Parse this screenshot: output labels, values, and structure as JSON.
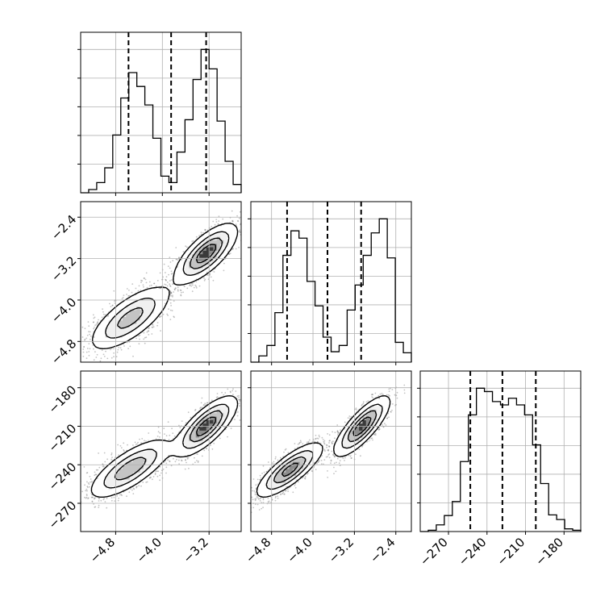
{
  "chart_data": {
    "type": "corner",
    "grid": true,
    "colors": {
      "ink": "#000000",
      "grid": "#b0b0b0",
      "scatter": "#7a7a7a",
      "background": "#ffffff"
    },
    "axes": {
      "p0": {
        "range": [
          -5.4,
          -2.65
        ],
        "ticks": [
          -4.8,
          -4.0,
          -3.2
        ],
        "tick_labels": [
          "−4.8",
          "−4.0",
          "−3.2"
        ]
      },
      "p1": {
        "range": [
          -5.2,
          -2.1
        ],
        "ticks": [
          -4.8,
          -4.0,
          -3.2,
          -2.4
        ],
        "tick_labels": [
          "−4.8",
          "−4.0",
          "−3.2",
          "−2.4"
        ]
      },
      "p2": {
        "range": [
          -292,
          -167
        ],
        "ticks": [
          -270,
          -240,
          -210,
          -180
        ],
        "tick_labels": [
          "−270",
          "−240",
          "−210",
          "−180"
        ]
      }
    },
    "histograms": [
      {
        "param": "p0",
        "bin_edges": [
          -5.4,
          -5.2625,
          -5.125,
          -4.9875,
          -4.85,
          -4.7125,
          -4.575,
          -4.4375,
          -4.3,
          -4.1625,
          -4.025,
          -3.8875,
          -3.75,
          -3.6125,
          -3.475,
          -3.3375,
          -3.2,
          -3.0625,
          -2.925,
          -2.7875,
          -2.65
        ],
        "counts": [
          0,
          7,
          22,
          54,
          125,
          205,
          260,
          230,
          190,
          118,
          36,
          22,
          88,
          158,
          245,
          310,
          268,
          155,
          68,
          18,
          0
        ],
        "quantiles": [
          -4.58,
          -3.85,
          -3.25
        ]
      },
      {
        "param": "p1",
        "bin_edges": [
          -5.2,
          -5.045,
          -4.89,
          -4.735,
          -4.58,
          -4.425,
          -4.27,
          -4.115,
          -3.96,
          -3.805,
          -3.65,
          -3.495,
          -3.34,
          -3.185,
          -3.03,
          -2.875,
          -2.72,
          -2.565,
          -2.41,
          -2.255,
          -2.1
        ],
        "counts": [
          0,
          12,
          32,
          95,
          205,
          252,
          238,
          155,
          108,
          48,
          20,
          32,
          100,
          148,
          205,
          248,
          275,
          200,
          38,
          18,
          0
        ],
        "quantiles": [
          -4.5,
          -3.72,
          -3.07
        ]
      },
      {
        "param": "p2",
        "bin_edges": [
          -292,
          -285.75,
          -279.5,
          -273.25,
          -267,
          -260.75,
          -254.5,
          -248.25,
          -242,
          -235.75,
          -229.5,
          -223.25,
          -217,
          -210.75,
          -204.5,
          -198.25,
          -192,
          -185.75,
          -179.5,
          -173.25,
          -167
        ],
        "counts": [
          0,
          2,
          10,
          24,
          45,
          105,
          175,
          215,
          210,
          195,
          190,
          200,
          190,
          175,
          130,
          72,
          25,
          18,
          4,
          2,
          0
        ],
        "quantiles": [
          -253,
          -228,
          -202
        ]
      }
    ],
    "pairs": [
      {
        "x": "p0",
        "y": "p1",
        "modes": [
          {
            "cx": -4.55,
            "cy": -4.35,
            "sx": 0.33,
            "sy": 0.3,
            "rho": 0.72,
            "weight": 0.5
          },
          {
            "cx": -3.25,
            "cy": -3.1,
            "sx": 0.25,
            "sy": 0.27,
            "rho": 0.72,
            "weight": 0.5
          }
        ]
      },
      {
        "x": "p0",
        "y": "p2",
        "modes": [
          {
            "cx": -4.55,
            "cy": -243,
            "sx": 0.33,
            "sy": 11,
            "rho": 0.75,
            "weight": 0.5
          },
          {
            "cx": -3.25,
            "cy": -210,
            "sx": 0.25,
            "sy": 11,
            "rho": 0.75,
            "weight": 0.5
          }
        ]
      },
      {
        "x": "p1",
        "y": "p2",
        "modes": [
          {
            "cx": -4.45,
            "cy": -244,
            "sx": 0.3,
            "sy": 10,
            "rho": 0.8,
            "weight": 0.5
          },
          {
            "cx": -3.05,
            "cy": -210,
            "sx": 0.25,
            "sy": 11,
            "rho": 0.8,
            "weight": 0.5
          }
        ]
      }
    ]
  }
}
